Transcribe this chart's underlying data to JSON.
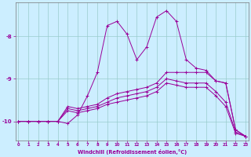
{
  "xlabel": "Windchill (Refroidissement éolien,°C)",
  "bg_color": "#cceeff",
  "grid_color": "#99cccc",
  "line_color": "#990099",
  "xticks": [
    0,
    1,
    2,
    3,
    4,
    5,
    6,
    7,
    8,
    9,
    10,
    11,
    12,
    13,
    14,
    15,
    16,
    17,
    18,
    19,
    20,
    21,
    22,
    23
  ],
  "yticks": [
    -10,
    -9,
    -8
  ],
  "ylim": [
    -10.45,
    -7.2
  ],
  "xlim": [
    -0.3,
    23.3
  ],
  "series": [
    [
      -10.0,
      -10.0,
      -10.0,
      -10.0,
      -10.0,
      -10.05,
      -9.85,
      -9.4,
      -8.85,
      -7.75,
      -7.65,
      -7.95,
      -8.55,
      -8.25,
      -7.55,
      -7.4,
      -7.65,
      -8.55,
      -8.75,
      -8.8,
      -9.05,
      -9.1,
      -10.2,
      -10.35
    ],
    [
      -10.0,
      -10.0,
      -10.0,
      -10.0,
      -10.0,
      -9.65,
      -9.7,
      -9.65,
      -9.6,
      -9.45,
      -9.35,
      -9.3,
      -9.25,
      -9.2,
      -9.1,
      -8.85,
      -8.85,
      -8.85,
      -8.85,
      -8.85,
      -9.05,
      -9.1,
      -10.2,
      -10.35
    ],
    [
      -10.0,
      -10.0,
      -10.0,
      -10.0,
      -10.0,
      -9.7,
      -9.75,
      -9.7,
      -9.65,
      -9.55,
      -9.45,
      -9.4,
      -9.35,
      -9.3,
      -9.2,
      -9.0,
      -9.05,
      -9.1,
      -9.1,
      -9.1,
      -9.3,
      -9.55,
      -10.25,
      -10.35
    ],
    [
      -10.0,
      -10.0,
      -10.0,
      -10.0,
      -10.0,
      -9.75,
      -9.8,
      -9.75,
      -9.7,
      -9.6,
      -9.55,
      -9.5,
      -9.45,
      -9.4,
      -9.3,
      -9.1,
      -9.15,
      -9.2,
      -9.2,
      -9.2,
      -9.4,
      -9.65,
      -10.28,
      -10.35
    ]
  ]
}
